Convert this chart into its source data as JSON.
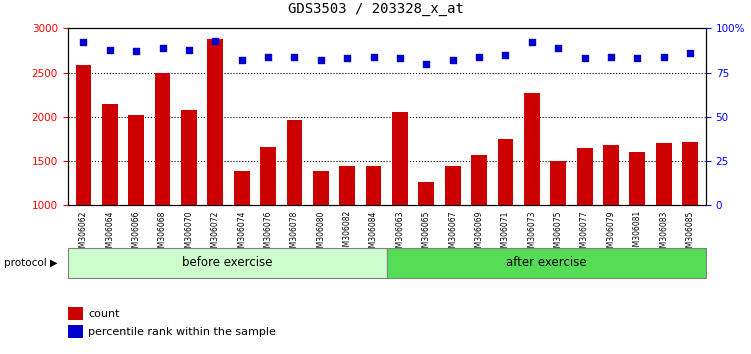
{
  "title": "GDS3503 / 203328_x_at",
  "samples": [
    "GSM306062",
    "GSM306064",
    "GSM306066",
    "GSM306068",
    "GSM306070",
    "GSM306072",
    "GSM306074",
    "GSM306076",
    "GSM306078",
    "GSM306080",
    "GSM306082",
    "GSM306084",
    "GSM306063",
    "GSM306065",
    "GSM306067",
    "GSM306069",
    "GSM306071",
    "GSM306073",
    "GSM306075",
    "GSM306077",
    "GSM306079",
    "GSM306081",
    "GSM306083",
    "GSM306085"
  ],
  "counts": [
    2580,
    2140,
    2020,
    2490,
    2080,
    2880,
    1390,
    1660,
    1960,
    1390,
    1440,
    1440,
    2050,
    1260,
    1440,
    1570,
    1750,
    2270,
    1500,
    1650,
    1680,
    1600,
    1700,
    1720
  ],
  "percentile_ranks": [
    92,
    88,
    87,
    89,
    88,
    93,
    82,
    84,
    84,
    82,
    83,
    84,
    83,
    80,
    82,
    84,
    85,
    92,
    89,
    83,
    84,
    83,
    84,
    86
  ],
  "n_before": 12,
  "n_after": 12,
  "before_label": "before exercise",
  "after_label": "after exercise",
  "before_color_light": "#ccffcc",
  "after_color": "#55dd55",
  "bar_color": "#cc0000",
  "dot_color": "#0000cc",
  "ylim_left": [
    1000,
    3000
  ],
  "ylim_right": [
    0,
    100
  ],
  "yticks_left": [
    1000,
    1500,
    2000,
    2500,
    3000
  ],
  "yticks_right": [
    0,
    25,
    50,
    75,
    100
  ],
  "grid_values": [
    1500,
    2000,
    2500
  ],
  "legend_count": "count",
  "legend_percentile": "percentile rank within the sample",
  "protocol_label": "protocol"
}
